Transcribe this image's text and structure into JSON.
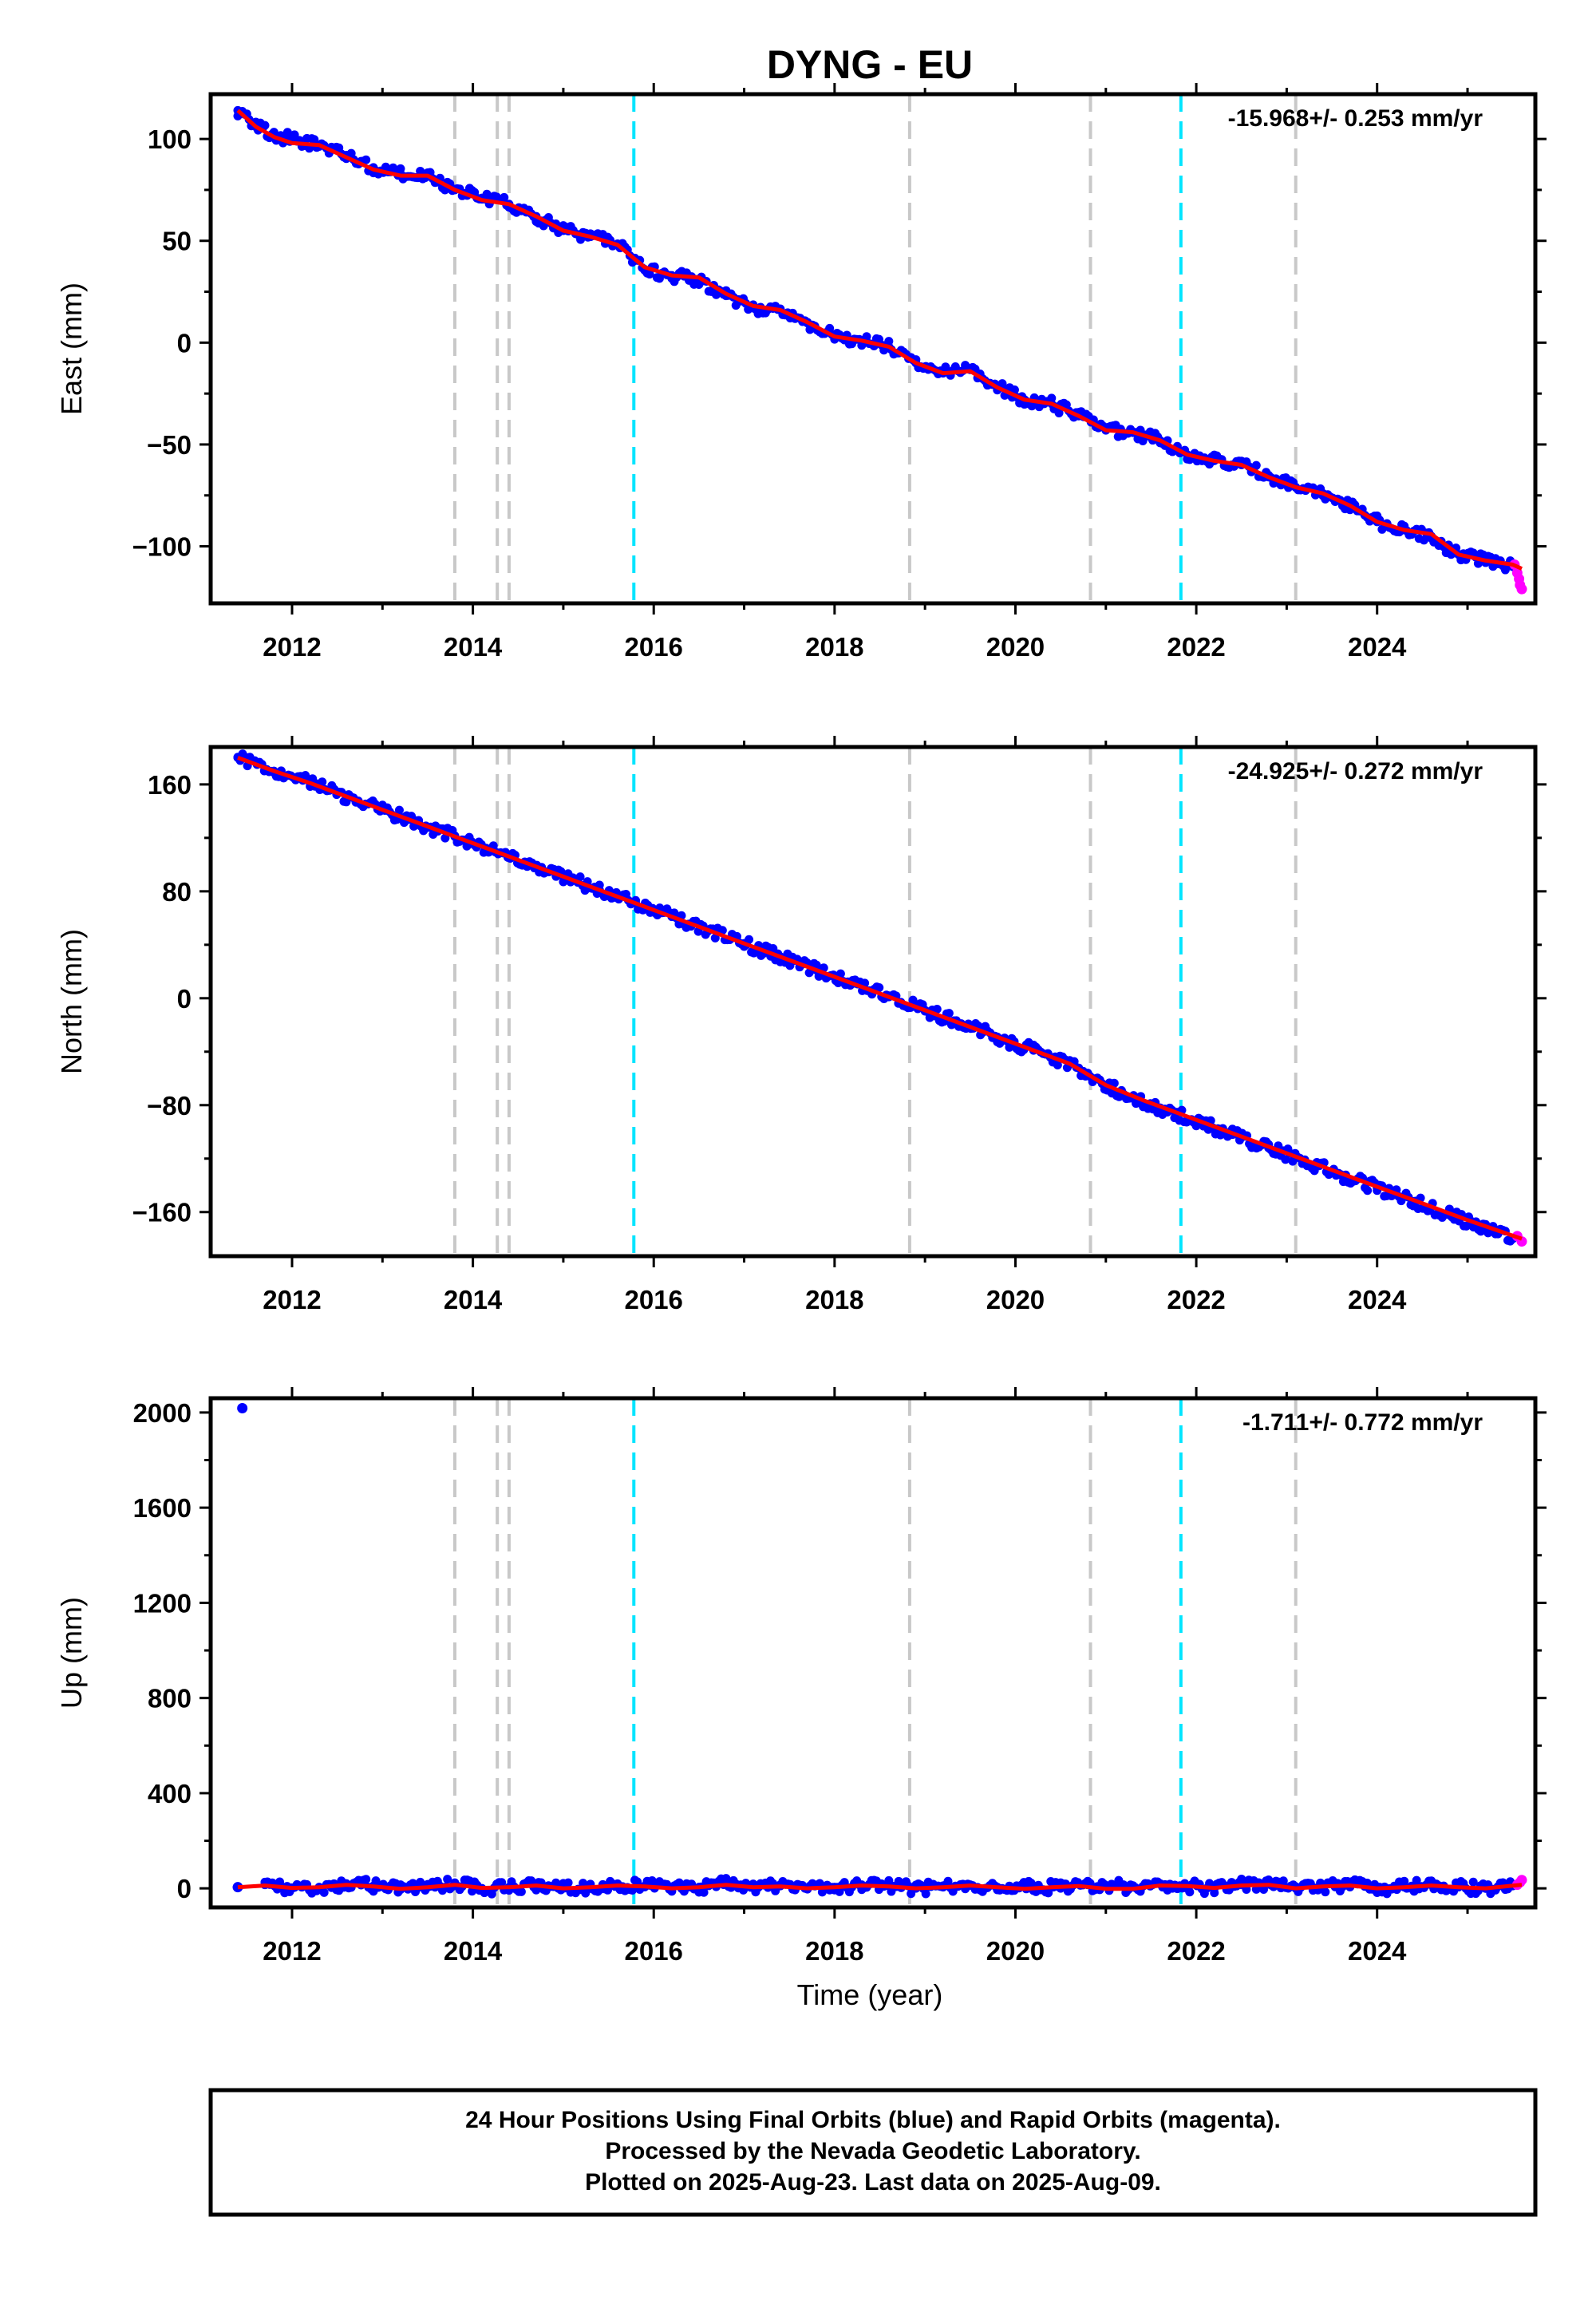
{
  "figure": {
    "title": "DYNG - EU",
    "xlabel": "Time (year)",
    "footer": [
      "24 Hour Positions Using Final Orbits (blue) and Rapid Orbits (magenta).",
      "Processed by the Nevada Geodetic Laboratory.",
      "Plotted on 2025-Aug-23. Last data on 2025-Aug-09."
    ]
  },
  "colors": {
    "final_orbits": "#0000ff",
    "rapid_orbits": "#ff00ff",
    "model_fit": "#ff0000",
    "event_gray": "#c8c8c8",
    "event_cyan": "#00e5ff"
  },
  "chart_data": [
    {
      "type": "scatter",
      "ylabel": "East (mm)",
      "rate": "-15.968+/- 0.253 mm/yr",
      "xlim": [
        2011.1,
        2025.75
      ],
      "ylim": [
        -128,
        122
      ],
      "yticks": [
        100,
        50,
        0,
        -50,
        -100
      ],
      "ytick_labels": [
        "100",
        "50",
        "0",
        "−50",
        "−100"
      ],
      "xticks": [
        2012,
        2014,
        2016,
        2018,
        2020,
        2022,
        2024
      ],
      "grid": false,
      "series": [
        {
          "style": "dots-blue",
          "x": [
            2011.4,
            2011.6,
            2011.8,
            2012.0,
            2012.3,
            2012.6,
            2012.9,
            2013.2,
            2013.5,
            2013.8,
            2014.1,
            2014.4,
            2014.7,
            2015.0,
            2015.3,
            2015.6,
            2015.9,
            2016.2,
            2016.5,
            2016.8,
            2017.1,
            2017.4,
            2017.7,
            2018.0,
            2018.3,
            2018.6,
            2018.9,
            2019.2,
            2019.5,
            2019.8,
            2020.1,
            2020.4,
            2020.7,
            2021.0,
            2021.3,
            2021.6,
            2021.9,
            2022.2,
            2022.5,
            2022.8,
            2023.1,
            2023.4,
            2023.7,
            2024.0,
            2024.3,
            2024.6,
            2024.9,
            2025.2,
            2025.5
          ],
          "y": [
            114,
            106,
            102,
            100,
            97,
            92,
            86,
            83,
            82,
            75,
            71,
            68,
            62,
            55,
            52,
            48,
            36,
            33,
            31,
            23,
            17,
            16,
            10,
            3,
            1,
            -2,
            -10,
            -15,
            -13,
            -22,
            -28,
            -30,
            -36,
            -43,
            -44,
            -48,
            -55,
            -58,
            -60,
            -66,
            -71,
            -74,
            -80,
            -88,
            -92,
            -96,
            -104,
            -107,
            -110
          ]
        },
        {
          "style": "dots-magenta",
          "x": [
            2025.52,
            2025.55,
            2025.57,
            2025.58,
            2025.6
          ],
          "y": [
            -109,
            -113,
            -116,
            -119,
            -121
          ]
        },
        {
          "style": "line-red",
          "x": [
            2011.4,
            2011.6,
            2011.8,
            2012.0,
            2012.3,
            2012.6,
            2012.9,
            2013.2,
            2013.5,
            2013.8,
            2014.1,
            2014.4,
            2014.7,
            2015.0,
            2015.3,
            2015.6,
            2015.9,
            2016.2,
            2016.5,
            2016.8,
            2017.1,
            2017.4,
            2017.7,
            2018.0,
            2018.3,
            2018.6,
            2018.9,
            2019.2,
            2019.5,
            2019.8,
            2020.1,
            2020.4,
            2020.7,
            2021.0,
            2021.3,
            2021.6,
            2021.9,
            2022.2,
            2022.5,
            2022.8,
            2023.1,
            2023.4,
            2023.7,
            2024.0,
            2024.3,
            2024.6,
            2024.9,
            2025.2,
            2025.5,
            2025.6
          ],
          "y": [
            114,
            106,
            101,
            98,
            97,
            91,
            85,
            82,
            82,
            75,
            70,
            68,
            62,
            55,
            52,
            48,
            37,
            33,
            32,
            24,
            18,
            16,
            10,
            3,
            1,
            -2,
            -10,
            -15,
            -14,
            -22,
            -28,
            -30,
            -36,
            -43,
            -44,
            -48,
            -55,
            -58,
            -60,
            -66,
            -71,
            -74,
            -80,
            -88,
            -92,
            -94,
            -104,
            -107,
            -109,
            -111
          ]
        }
      ]
    },
    {
      "type": "scatter",
      "ylabel": "North (mm)",
      "rate": "-24.925+/- 0.272 mm/yr",
      "xlim": [
        2011.1,
        2025.75
      ],
      "ylim": [
        -193,
        188
      ],
      "yticks": [
        160,
        80,
        0,
        -80,
        -160
      ],
      "ytick_labels": [
        "160",
        "80",
        "0",
        "−80",
        "−160"
      ],
      "xticks": [
        2012,
        2014,
        2016,
        2018,
        2020,
        2022,
        2024
      ],
      "grid": false,
      "series": [
        {
          "style": "dots-blue",
          "x": [
            2011.4,
            2011.8,
            2012.2,
            2012.6,
            2013.0,
            2013.4,
            2013.8,
            2014.2,
            2014.6,
            2015.0,
            2015.4,
            2015.8,
            2016.2,
            2016.6,
            2017.0,
            2017.4,
            2017.8,
            2018.2,
            2018.6,
            2019.0,
            2019.4,
            2019.8,
            2020.2,
            2020.6,
            2020.8,
            2021.2,
            2021.6,
            2022.0,
            2022.4,
            2022.8,
            2023.2,
            2023.6,
            2024.0,
            2024.4,
            2024.8,
            2025.2,
            2025.5
          ],
          "y": [
            180,
            170,
            161,
            151,
            141,
            131,
            121,
            111,
            101,
            91,
            81,
            71,
            61,
            51,
            41,
            31,
            21,
            11,
            1,
            -9,
            -19,
            -29,
            -39,
            -49,
            -57,
            -72,
            -82,
            -92,
            -102,
            -112,
            -122,
            -132,
            -142,
            -152,
            -162,
            -172,
            -180
          ]
        },
        {
          "style": "dots-magenta",
          "x": [
            2025.55,
            2025.6
          ],
          "y": [
            -178,
            -182
          ]
        },
        {
          "style": "line-red",
          "x": [
            2011.4,
            2011.8,
            2012.2,
            2012.6,
            2013.0,
            2013.4,
            2013.8,
            2014.2,
            2014.6,
            2015.0,
            2015.4,
            2015.8,
            2016.2,
            2016.6,
            2017.0,
            2017.4,
            2017.8,
            2018.2,
            2018.6,
            2019.0,
            2019.4,
            2019.8,
            2020.2,
            2020.6,
            2021.0,
            2021.4,
            2021.8,
            2022.2,
            2022.6,
            2023.0,
            2023.4,
            2023.8,
            2024.2,
            2024.6,
            2025.0,
            2025.3,
            2025.6
          ],
          "y": [
            180,
            170,
            161,
            151,
            141,
            131,
            121,
            111,
            101,
            91,
            81,
            71,
            61,
            51,
            41,
            31,
            21,
            11,
            1,
            -9,
            -19,
            -29,
            -39,
            -49,
            -65,
            -76,
            -86,
            -96,
            -106,
            -116,
            -126,
            -136,
            -146,
            -156,
            -166,
            -173,
            -180
          ]
        }
      ]
    },
    {
      "type": "scatter",
      "ylabel": "Up (mm)",
      "rate": "-1.711+/- 0.772 mm/yr",
      "xlim": [
        2011.1,
        2025.75
      ],
      "ylim": [
        -80,
        2060
      ],
      "yticks": [
        2000,
        1600,
        1200,
        800,
        400,
        0
      ],
      "ytick_labels": [
        "2000",
        "1600",
        "1200",
        "800",
        "400",
        "0"
      ],
      "xticks": [
        2012,
        2014,
        2016,
        2018,
        2020,
        2022,
        2024
      ],
      "grid": false,
      "series": [
        {
          "style": "dots-blue",
          "x": [
            2011.45,
            2011.4,
            2011.7,
            2012.0,
            2012.3,
            2012.6,
            2012.9,
            2013.2,
            2013.5,
            2013.8,
            2014.1,
            2014.4,
            2014.7,
            2015.0,
            2015.3,
            2015.6,
            2015.9,
            2016.2,
            2016.5,
            2016.8,
            2017.1,
            2017.4,
            2017.7,
            2018.0,
            2018.3,
            2018.6,
            2018.9,
            2019.2,
            2019.5,
            2019.8,
            2020.2,
            2020.5,
            2020.8,
            2021.3,
            2021.6,
            2021.9,
            2022.2,
            2022.5,
            2022.8,
            2023.1,
            2023.4,
            2023.7,
            2024.0,
            2024.3,
            2024.6,
            2024.9,
            2025.2,
            2025.5
          ],
          "y": [
            2018,
            5,
            15,
            0,
            5,
            20,
            10,
            -5,
            5,
            20,
            0,
            5,
            15,
            0,
            5,
            15,
            10,
            0,
            5,
            20,
            5,
            10,
            0,
            5,
            15,
            10,
            0,
            5,
            15,
            5,
            10,
            0,
            15,
            5,
            20,
            10,
            0,
            15,
            20,
            0,
            10,
            15,
            0,
            5,
            15,
            5,
            0,
            10
          ]
        },
        {
          "style": "dots-magenta",
          "x": [
            2025.55,
            2025.58,
            2025.6
          ],
          "y": [
            15,
            25,
            35
          ]
        },
        {
          "style": "line-red",
          "x": [
            2011.4,
            2011.7,
            2012.0,
            2012.3,
            2012.6,
            2012.9,
            2013.2,
            2013.5,
            2013.8,
            2014.1,
            2014.4,
            2014.7,
            2015.0,
            2015.3,
            2015.6,
            2015.9,
            2016.2,
            2016.5,
            2016.8,
            2017.1,
            2017.4,
            2017.7,
            2018.0,
            2018.3,
            2018.6,
            2018.9,
            2019.2,
            2019.5,
            2019.8,
            2020.1,
            2020.4,
            2020.7,
            2021.0,
            2021.3,
            2021.6,
            2021.9,
            2022.2,
            2022.5,
            2022.8,
            2023.1,
            2023.4,
            2023.7,
            2024.0,
            2024.3,
            2024.6,
            2024.9,
            2025.2,
            2025.6
          ],
          "y": [
            5,
            12,
            2,
            5,
            15,
            8,
            -2,
            5,
            15,
            2,
            5,
            12,
            0,
            5,
            12,
            8,
            0,
            5,
            15,
            5,
            8,
            0,
            5,
            12,
            8,
            0,
            5,
            12,
            5,
            -2,
            5,
            10,
            -2,
            -2,
            12,
            10,
            2,
            12,
            15,
            0,
            8,
            12,
            0,
            5,
            12,
            5,
            0,
            15
          ]
        }
      ]
    }
  ],
  "events": {
    "gray": [
      2013.8,
      2014.27,
      2014.4,
      2018.83,
      2020.83,
      2023.1
    ],
    "cyan": [
      2015.78,
      2021.83
    ]
  }
}
